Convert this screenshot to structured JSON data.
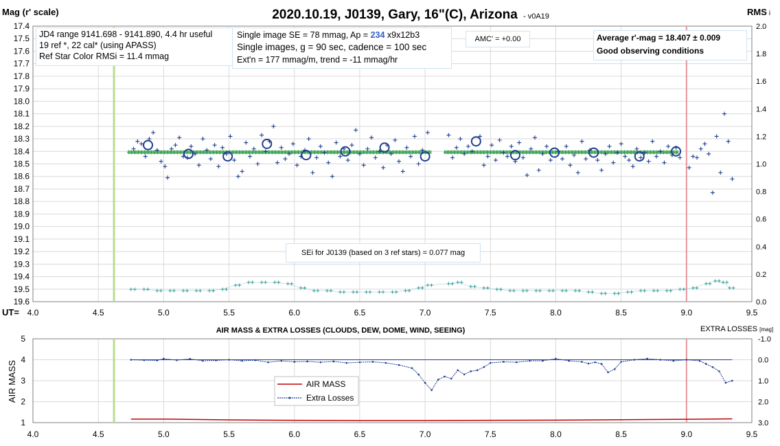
{
  "title": "2020.10.19, J0139, Gary, 16\"(C), Arizona",
  "version": "- v0A19",
  "top": {
    "y_label": "Mag (r' scale)",
    "y2_label": "RMS",
    "y2_label_suffix": "i",
    "x_prefix": "UT=",
    "info_left": [
      "JD4 range 9141.698 - 9141.890, 4.4 hr useful",
      "19 ref *, 22 cal* (using APASS)",
      "Ref Star Color RMSi = 11.4 mmag"
    ],
    "info_mid_1_pre": "Single image SE = 78 mmag, Ap = ",
    "info_mid_1_ap": "234",
    "info_mid_1_post": " x9x12b3",
    "info_mid_2": "Single images, g = 90 sec, cadence = 100 sec",
    "info_mid_3": "Ext'n = 177 mmag/m, trend = -11 mmag/hr",
    "amc": "AMC' = +0.00",
    "avg_line": "Average r'-mag =  18.407 ± 0.009",
    "conditions": "Good observing conditions",
    "sei": "SEi for J0139 (based on 3 ref stars) = 0.077 mag"
  },
  "bottom": {
    "title": "AIR MASS & EXTRA LOSSES (CLOUDS, DEW, DOME, WIND, SEEING)",
    "y_label": "AIR MASS",
    "y2_label": "EXTRA LOSSES",
    "y2_unit": "[mag]",
    "legend_airmass": "AIR MASS",
    "legend_losses": "Extra Losses"
  },
  "colors": {
    "points": "#1f3d8f",
    "avg_band": "#2e9c48",
    "rms": "#2f9a9a",
    "ingress": "#b9dc8e",
    "egress": "#e8949a",
    "airmass": "#c00000",
    "losses": "#1f3d8f"
  },
  "chart_data": [
    {
      "type": "scatter",
      "title": "2020.10.19, J0139, Gary, 16\"(C), Arizona",
      "xlabel": "UT=",
      "ylabel": "Mag (r' scale)",
      "y2label": "RMS i",
      "xlim": [
        4.0,
        9.5
      ],
      "ylim": [
        17.4,
        19.6
      ],
      "y_inverted": true,
      "y2lim": [
        0.0,
        2.0
      ],
      "x_ticks": [
        "4.0",
        "4.5",
        "5.0",
        "5.5",
        "6.0",
        "6.5",
        "7.0",
        "7.5",
        "8.0",
        "8.5",
        "9.0",
        "9.5"
      ],
      "y_ticks": [
        "17.4",
        "17.5",
        "17.6",
        "17.7",
        "17.8",
        "17.9",
        "18.0",
        "18.1",
        "18.2",
        "18.3",
        "18.4",
        "18.5",
        "18.6",
        "18.7",
        "18.8",
        "18.9",
        "19.0",
        "19.1",
        "19.2",
        "19.3",
        "19.4",
        "19.5",
        "19.6"
      ],
      "y2_ticks": [
        "2.0",
        "1.8",
        "1.6",
        "1.4",
        "1.2",
        "1.0",
        "0.8",
        "0.6",
        "0.4",
        "0.2",
        "0.0"
      ],
      "grid": true,
      "markers": {
        "ingress_ut": 4.62,
        "egress_ut": 9.0
      },
      "average": {
        "value": 18.407,
        "x_start": 4.73,
        "x_end": 8.94,
        "gap": [
          7.05,
          7.15
        ]
      },
      "binned": [
        {
          "x": 4.88,
          "y": 18.35
        },
        {
          "x": 5.19,
          "y": 18.42
        },
        {
          "x": 5.49,
          "y": 18.44
        },
        {
          "x": 5.79,
          "y": 18.34
        },
        {
          "x": 6.09,
          "y": 18.43
        },
        {
          "x": 6.39,
          "y": 18.4
        },
        {
          "x": 6.69,
          "y": 18.37
        },
        {
          "x": 7.0,
          "y": 18.44
        },
        {
          "x": 7.39,
          "y": 18.32
        },
        {
          "x": 7.69,
          "y": 18.43
        },
        {
          "x": 7.99,
          "y": 18.41
        },
        {
          "x": 8.29,
          "y": 18.41
        },
        {
          "x": 8.64,
          "y": 18.44
        },
        {
          "x": 8.92,
          "y": 18.4
        }
      ],
      "singles": [
        [
          4.77,
          18.38
        ],
        [
          4.8,
          18.32
        ],
        [
          4.83,
          18.34
        ],
        [
          4.86,
          18.44
        ],
        [
          4.89,
          18.3
        ],
        [
          4.92,
          18.25
        ],
        [
          4.95,
          18.39
        ],
        [
          4.98,
          18.48
        ],
        [
          5.01,
          18.52
        ],
        [
          5.03,
          18.61
        ],
        [
          5.06,
          18.38
        ],
        [
          5.09,
          18.35
        ],
        [
          5.12,
          18.29
        ],
        [
          5.15,
          18.44
        ],
        [
          5.18,
          18.45
        ],
        [
          5.21,
          18.36
        ],
        [
          5.24,
          18.42
        ],
        [
          5.27,
          18.51
        ],
        [
          5.3,
          18.3
        ],
        [
          5.33,
          18.39
        ],
        [
          5.36,
          18.46
        ],
        [
          5.39,
          18.35
        ],
        [
          5.42,
          18.52
        ],
        [
          5.45,
          18.37
        ],
        [
          5.48,
          18.42
        ],
        [
          5.51,
          18.28
        ],
        [
          5.54,
          18.47
        ],
        [
          5.57,
          18.6
        ],
        [
          5.6,
          18.56
        ],
        [
          5.63,
          18.33
        ],
        [
          5.66,
          18.44
        ],
        [
          5.69,
          18.38
        ],
        [
          5.72,
          18.5
        ],
        [
          5.75,
          18.27
        ],
        [
          5.78,
          18.4
        ],
        [
          5.81,
          18.32
        ],
        [
          5.84,
          18.2
        ],
        [
          5.87,
          18.49
        ],
        [
          5.9,
          18.37
        ],
        [
          5.93,
          18.46
        ],
        [
          5.96,
          18.42
        ],
        [
          5.99,
          18.34
        ],
        [
          6.02,
          18.51
        ],
        [
          6.05,
          18.44
        ],
        [
          6.08,
          18.39
        ],
        [
          6.11,
          18.3
        ],
        [
          6.14,
          18.57
        ],
        [
          6.17,
          18.45
        ],
        [
          6.2,
          18.36
        ],
        [
          6.23,
          18.41
        ],
        [
          6.26,
          18.49
        ],
        [
          6.29,
          18.6
        ],
        [
          6.32,
          18.33
        ],
        [
          6.35,
          18.44
        ],
        [
          6.38,
          18.38
        ],
        [
          6.41,
          18.47
        ],
        [
          6.44,
          18.35
        ],
        [
          6.47,
          18.23
        ],
        [
          6.5,
          18.42
        ],
        [
          6.53,
          18.51
        ],
        [
          6.56,
          18.38
        ],
        [
          6.59,
          18.29
        ],
        [
          6.62,
          18.45
        ],
        [
          6.65,
          18.4
        ],
        [
          6.68,
          18.53
        ],
        [
          6.71,
          18.35
        ],
        [
          6.74,
          18.42
        ],
        [
          6.77,
          18.31
        ],
        [
          6.8,
          18.48
        ],
        [
          6.83,
          18.56
        ],
        [
          6.86,
          18.37
        ],
        [
          6.89,
          18.44
        ],
        [
          6.92,
          18.28
        ],
        [
          6.95,
          18.5
        ],
        [
          6.98,
          18.39
        ],
        [
          7.02,
          18.25
        ],
        [
          7.18,
          18.27
        ],
        [
          7.21,
          18.45
        ],
        [
          7.24,
          18.37
        ],
        [
          7.27,
          18.3
        ],
        [
          7.3,
          18.42
        ],
        [
          7.33,
          18.36
        ],
        [
          7.36,
          18.4
        ],
        [
          7.42,
          18.28
        ],
        [
          7.45,
          18.51
        ],
        [
          7.48,
          18.44
        ],
        [
          7.51,
          18.35
        ],
        [
          7.54,
          18.47
        ],
        [
          7.57,
          18.31
        ],
        [
          7.6,
          18.41
        ],
        [
          7.63,
          18.44
        ],
        [
          7.66,
          18.36
        ],
        [
          7.69,
          18.48
        ],
        [
          7.72,
          18.33
        ],
        [
          7.75,
          18.45
        ],
        [
          7.78,
          18.59
        ],
        [
          7.81,
          18.38
        ],
        [
          7.84,
          18.29
        ],
        [
          7.87,
          18.55
        ],
        [
          7.9,
          18.42
        ],
        [
          7.93,
          18.36
        ],
        [
          7.96,
          18.47
        ],
        [
          8.02,
          18.4
        ],
        [
          8.05,
          18.46
        ],
        [
          8.08,
          18.36
        ],
        [
          8.11,
          18.51
        ],
        [
          8.14,
          18.43
        ],
        [
          8.17,
          18.57
        ],
        [
          8.2,
          18.32
        ],
        [
          8.23,
          18.46
        ],
        [
          8.26,
          18.39
        ],
        [
          8.32,
          18.47
        ],
        [
          8.35,
          18.55
        ],
        [
          8.38,
          18.42
        ],
        [
          8.41,
          18.36
        ],
        [
          8.44,
          18.49
        ],
        [
          8.47,
          18.41
        ],
        [
          8.5,
          18.34
        ],
        [
          8.53,
          18.44
        ],
        [
          8.56,
          18.47
        ],
        [
          8.59,
          18.52
        ],
        [
          8.62,
          18.38
        ],
        [
          8.65,
          18.45
        ],
        [
          8.68,
          18.41
        ],
        [
          8.71,
          18.48
        ],
        [
          8.74,
          18.32
        ],
        [
          8.77,
          18.44
        ],
        [
          8.8,
          18.4
        ],
        [
          8.83,
          18.49
        ],
        [
          8.86,
          18.36
        ],
        [
          8.89,
          18.43
        ],
        [
          8.92,
          18.37
        ],
        [
          8.95,
          18.45
        ],
        [
          9.02,
          18.53
        ],
        [
          9.05,
          18.44
        ],
        [
          9.08,
          18.45
        ],
        [
          9.11,
          18.38
        ],
        [
          9.14,
          18.34
        ],
        [
          9.17,
          18.42
        ],
        [
          9.2,
          18.73
        ],
        [
          9.23,
          18.28
        ],
        [
          9.26,
          18.57
        ],
        [
          9.29,
          18.1
        ],
        [
          9.32,
          18.32
        ],
        [
          9.35,
          18.62
        ]
      ],
      "rms": {
        "axis": "y2",
        "points": [
          [
            4.75,
            0.09
          ],
          [
            4.85,
            0.09
          ],
          [
            4.95,
            0.08
          ],
          [
            5.05,
            0.08
          ],
          [
            5.15,
            0.08
          ],
          [
            5.25,
            0.08
          ],
          [
            5.35,
            0.08
          ],
          [
            5.45,
            0.09
          ],
          [
            5.55,
            0.12
          ],
          [
            5.65,
            0.14
          ],
          [
            5.75,
            0.14
          ],
          [
            5.85,
            0.14
          ],
          [
            5.95,
            0.13
          ],
          [
            6.05,
            0.1
          ],
          [
            6.15,
            0.08
          ],
          [
            6.25,
            0.08
          ],
          [
            6.35,
            0.07
          ],
          [
            6.45,
            0.07
          ],
          [
            6.55,
            0.07
          ],
          [
            6.65,
            0.07
          ],
          [
            6.75,
            0.07
          ],
          [
            6.85,
            0.08
          ],
          [
            6.95,
            0.1
          ],
          [
            7.02,
            0.12
          ],
          [
            7.18,
            0.13
          ],
          [
            7.25,
            0.14
          ],
          [
            7.35,
            0.11
          ],
          [
            7.45,
            0.1
          ],
          [
            7.55,
            0.09
          ],
          [
            7.65,
            0.08
          ],
          [
            7.75,
            0.08
          ],
          [
            7.85,
            0.08
          ],
          [
            7.95,
            0.08
          ],
          [
            8.05,
            0.08
          ],
          [
            8.15,
            0.08
          ],
          [
            8.25,
            0.07
          ],
          [
            8.35,
            0.06
          ],
          [
            8.45,
            0.06
          ],
          [
            8.55,
            0.07
          ],
          [
            8.65,
            0.08
          ],
          [
            8.75,
            0.08
          ],
          [
            8.85,
            0.08
          ],
          [
            8.95,
            0.09
          ],
          [
            9.05,
            0.1
          ],
          [
            9.15,
            0.13
          ],
          [
            9.22,
            0.15
          ],
          [
            9.28,
            0.14
          ],
          [
            9.33,
            0.1
          ]
        ]
      }
    },
    {
      "type": "line",
      "title": "AIR MASS & EXTRA LOSSES (CLOUDS, DEW, DOME, WIND, SEEING)",
      "xlabel": "",
      "ylabel": "AIR MASS",
      "y2label": "EXTRA LOSSES [mag]",
      "xlim": [
        4.0,
        9.5
      ],
      "ylim": [
        1,
        5
      ],
      "y2lim": [
        -1.0,
        3.0
      ],
      "y2_inverted": true,
      "x_ticks": [
        "4.0",
        "4.5",
        "5.0",
        "5.5",
        "6.0",
        "6.5",
        "7.0",
        "7.5",
        "8.0",
        "8.5",
        "9.0",
        "9.5"
      ],
      "y_ticks": [
        "5",
        "4",
        "3",
        "2",
        "1"
      ],
      "y2_ticks": [
        "-1.0",
        "0.0",
        "1.0",
        "2.0",
        "3.0"
      ],
      "grid": true,
      "series": [
        {
          "name": "AIR MASS",
          "axis": "y",
          "points": [
            [
              4.75,
              1.17
            ],
            [
              5.0,
              1.17
            ],
            [
              5.5,
              1.13
            ],
            [
              6.0,
              1.11
            ],
            [
              6.5,
              1.1
            ],
            [
              7.0,
              1.1
            ],
            [
              7.5,
              1.11
            ],
            [
              8.0,
              1.12
            ],
            [
              8.5,
              1.14
            ],
            [
              9.0,
              1.16
            ],
            [
              9.35,
              1.18
            ]
          ]
        },
        {
          "name": "Extra Losses",
          "axis": "y2",
          "points": [
            [
              4.75,
              0.0
            ],
            [
              4.85,
              0.02
            ],
            [
              4.95,
              0.03
            ],
            [
              5.0,
              -0.05
            ],
            [
              5.1,
              0.02
            ],
            [
              5.2,
              -0.04
            ],
            [
              5.3,
              0.05
            ],
            [
              5.4,
              0.03
            ],
            [
              5.5,
              0.0
            ],
            [
              5.6,
              0.05
            ],
            [
              5.7,
              0.02
            ],
            [
              5.8,
              0.12
            ],
            [
              5.9,
              0.05
            ],
            [
              6.0,
              0.1
            ],
            [
              6.1,
              0.08
            ],
            [
              6.2,
              0.12
            ],
            [
              6.3,
              0.08
            ],
            [
              6.4,
              0.15
            ],
            [
              6.5,
              0.12
            ],
            [
              6.6,
              0.1
            ],
            [
              6.7,
              0.15
            ],
            [
              6.8,
              0.25
            ],
            [
              6.9,
              0.4
            ],
            [
              6.95,
              0.7
            ],
            [
              7.0,
              1.1
            ],
            [
              7.05,
              1.45
            ],
            [
              7.1,
              0.95
            ],
            [
              7.15,
              0.8
            ],
            [
              7.2,
              0.9
            ],
            [
              7.25,
              0.5
            ],
            [
              7.3,
              0.7
            ],
            [
              7.35,
              0.55
            ],
            [
              7.4,
              0.5
            ],
            [
              7.45,
              0.35
            ],
            [
              7.5,
              0.15
            ],
            [
              7.6,
              0.1
            ],
            [
              7.7,
              0.12
            ],
            [
              7.8,
              0.05
            ],
            [
              7.9,
              0.05
            ],
            [
              8.0,
              -0.05
            ],
            [
              8.1,
              0.05
            ],
            [
              8.2,
              0.1
            ],
            [
              8.25,
              0.18
            ],
            [
              8.3,
              0.12
            ],
            [
              8.35,
              0.2
            ],
            [
              8.4,
              0.6
            ],
            [
              8.45,
              0.45
            ],
            [
              8.5,
              0.1
            ],
            [
              8.6,
              0.0
            ],
            [
              8.7,
              -0.05
            ],
            [
              8.8,
              0.0
            ],
            [
              8.9,
              0.05
            ],
            [
              9.0,
              0.0
            ],
            [
              9.1,
              0.05
            ],
            [
              9.15,
              0.2
            ],
            [
              9.2,
              0.35
            ],
            [
              9.25,
              0.55
            ],
            [
              9.3,
              1.1
            ],
            [
              9.35,
              1.0
            ]
          ]
        }
      ]
    }
  ]
}
